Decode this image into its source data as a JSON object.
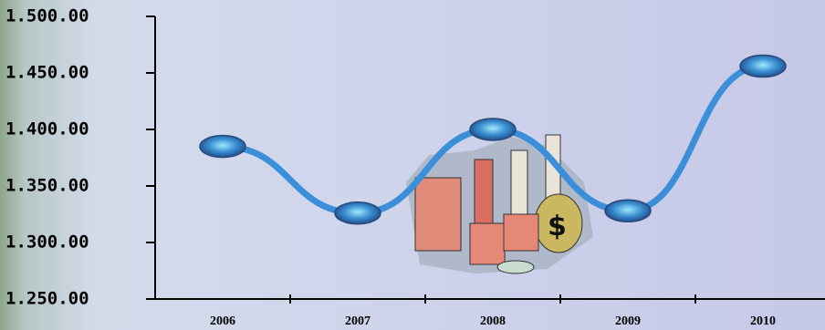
{
  "chart_data": {
    "type": "line",
    "categories": [
      "2006",
      "2007",
      "2008",
      "2009",
      "2010"
    ],
    "values": [
      1385,
      1326,
      1400,
      1328,
      1456
    ],
    "color": "#3a8fd8",
    "ylim": [
      1250,
      1500
    ],
    "yticks": [
      {
        "value": 1250,
        "label": "1.250.00"
      },
      {
        "value": 1300,
        "label": "1.300.00"
      },
      {
        "value": 1350,
        "label": "1.350.00"
      },
      {
        "value": 1400,
        "label": "1.400.00"
      },
      {
        "value": 1450,
        "label": "1.450.00"
      },
      {
        "value": 1500,
        "label": "1.500.00"
      }
    ]
  }
}
